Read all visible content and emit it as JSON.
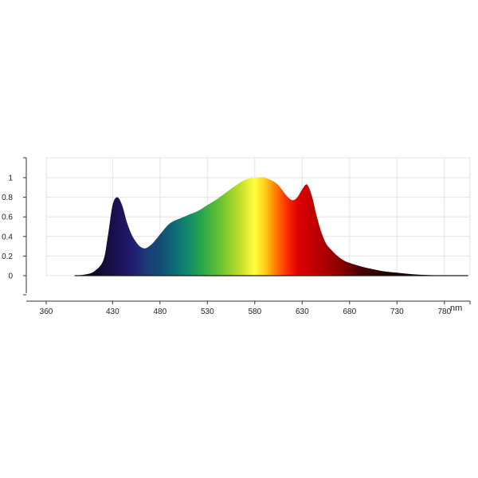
{
  "chart_data": {
    "type": "area",
    "x_unit_label": "nm",
    "xlim": [
      360,
      810
    ],
    "ylim": [
      0,
      1
    ],
    "grid": true,
    "x_ticks": [
      360,
      430,
      480,
      530,
      580,
      630,
      680,
      730,
      780
    ],
    "y_ticks": [
      0,
      0.2,
      0.4,
      0.6,
      0.8,
      1
    ],
    "x_tick_labels": [
      "360",
      "430",
      "480",
      "530",
      "580",
      "630",
      "680",
      "730",
      "780"
    ],
    "y_tick_labels": [
      "0",
      "0.2",
      "0.4",
      "0.6",
      "0.8",
      "1"
    ],
    "fill": "visible-spectrum gradient",
    "series": [
      {
        "x": [
          390,
          400,
          410,
          420,
          425,
          430,
          435,
          440,
          445,
          450,
          455,
          460,
          465,
          470,
          475,
          480,
          485,
          490,
          495,
          500,
          505,
          510,
          520,
          530,
          540,
          550,
          560,
          570,
          580,
          590,
          600,
          605,
          610,
          615,
          620,
          625,
          630,
          635,
          640,
          645,
          650,
          655,
          660,
          665,
          670,
          675,
          680,
          690,
          700,
          710,
          720,
          730,
          740,
          750,
          760,
          770,
          780,
          790,
          800,
          805
        ],
        "y": [
          0,
          0.01,
          0.04,
          0.15,
          0.4,
          0.72,
          0.8,
          0.72,
          0.55,
          0.42,
          0.34,
          0.29,
          0.28,
          0.31,
          0.36,
          0.42,
          0.48,
          0.53,
          0.56,
          0.58,
          0.6,
          0.62,
          0.66,
          0.72,
          0.78,
          0.85,
          0.92,
          0.98,
          1.0,
          1.0,
          0.96,
          0.92,
          0.86,
          0.8,
          0.77,
          0.8,
          0.88,
          0.93,
          0.82,
          0.62,
          0.45,
          0.33,
          0.27,
          0.22,
          0.18,
          0.15,
          0.13,
          0.1,
          0.075,
          0.055,
          0.04,
          0.03,
          0.02,
          0.012,
          0.007,
          0.004,
          0.002,
          0.001,
          0,
          0
        ]
      }
    ]
  }
}
